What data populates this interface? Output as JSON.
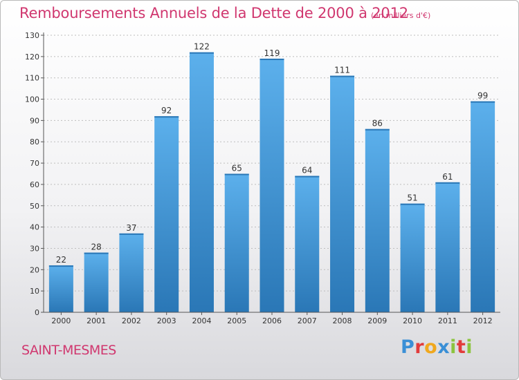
{
  "header": {
    "title": "Remboursements Annuels de la Dette de 2000 à 2012",
    "unit": "(en milliers d'€)"
  },
  "footer": {
    "town": "SAINT-MESMES",
    "brand_letters": [
      {
        "char": "P",
        "color": "#3a8fd6"
      },
      {
        "char": "r",
        "color": "#e23b3b"
      },
      {
        "char": "o",
        "color": "#f0a81e"
      },
      {
        "char": "x",
        "color": "#3a8fd6"
      },
      {
        "char": "i",
        "color": "#8cc43f"
      },
      {
        "char": "t",
        "color": "#e23b3b"
      },
      {
        "char": "i",
        "color": "#8cc43f"
      }
    ]
  },
  "chart_data": {
    "type": "bar",
    "title": "Remboursements Annuels de la Dette de 2000 à 2012",
    "unit_label": "(en milliers d'€)",
    "categories": [
      "2000",
      "2001",
      "2002",
      "2003",
      "2004",
      "2005",
      "2006",
      "2007",
      "2008",
      "2009",
      "2010",
      "2011",
      "2012"
    ],
    "values": [
      22,
      28,
      37,
      92,
      122,
      65,
      119,
      64,
      111,
      86,
      51,
      61,
      99
    ],
    "ylim": [
      0,
      130
    ],
    "yticks": [
      0,
      10,
      20,
      30,
      40,
      50,
      60,
      70,
      80,
      90,
      100,
      110,
      120,
      130
    ],
    "grid": true,
    "legend": "none",
    "colors": {
      "bar_light": "#5cb0ec",
      "bar_dark": "#2a77b6",
      "grid": "#bdbdbd",
      "axis": "#555555"
    }
  }
}
